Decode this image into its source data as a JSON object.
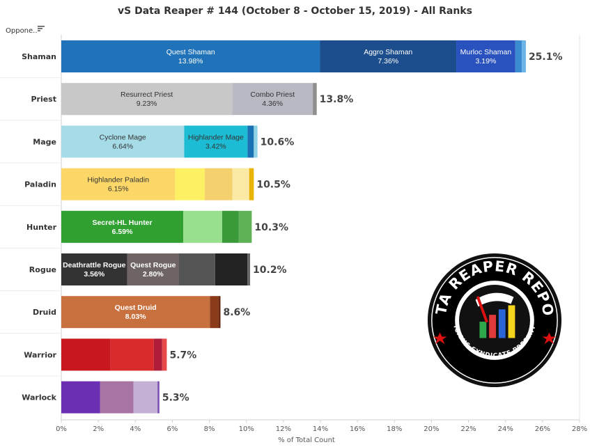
{
  "title": "vS Data Reaper # 144 (October 8 - October 15, 2019) - All Ranks",
  "header_label": "Oppone..",
  "icons": {
    "sort": "sort-descending-icon"
  },
  "badge": {
    "title": "DATA REAPER REPORT",
    "subtitle": "VICIOUS SYNDICATE PRESENTS"
  },
  "chart_data": {
    "type": "bar",
    "orientation": "horizontal",
    "stacked": true,
    "title": "vS Data Reaper # 144 (October 8 - October 15, 2019) - All Ranks",
    "xlabel": "% of Total Count",
    "ylabel": "Oppone..",
    "xlim": [
      0,
      28
    ],
    "xticks": [
      "0%",
      "2%",
      "4%",
      "6%",
      "8%",
      "10%",
      "12%",
      "14%",
      "16%",
      "18%",
      "20%",
      "22%",
      "24%",
      "26%",
      "28%"
    ],
    "grid": false,
    "categories": [
      "Shaman",
      "Priest",
      "Mage",
      "Paladin",
      "Hunter",
      "Rogue",
      "Druid",
      "Warrior",
      "Warlock"
    ],
    "totals": [
      "25.1%",
      "13.8%",
      "10.6%",
      "10.5%",
      "10.3%",
      "10.2%",
      "8.6%",
      "5.7%",
      "5.3%"
    ],
    "total_values": [
      25.1,
      13.8,
      10.6,
      10.5,
      10.3,
      10.2,
      8.6,
      5.7,
      5.3
    ],
    "bars": [
      {
        "class": "Shaman",
        "segments": [
          {
            "name": "Quest Shaman",
            "label": "13.98%",
            "value": 13.98,
            "color": "#2073b8",
            "text_color": "#ffffff"
          },
          {
            "name": "Aggro Shaman",
            "label": "7.36%",
            "value": 7.36,
            "color": "#1c4d8c",
            "text_color": "#ffffff"
          },
          {
            "name": "Murloc Shaman",
            "label": "3.19%",
            "value": 3.19,
            "color": "#2a52be",
            "text_color": "#ffffff"
          },
          {
            "name": "",
            "label": "",
            "value": 0.35,
            "color": "#3a8bd0",
            "text_color": "#ffffff"
          },
          {
            "name": "",
            "label": "",
            "value": 0.22,
            "color": "#6cb3e6",
            "text_color": "#ffffff"
          }
        ]
      },
      {
        "class": "Priest",
        "segments": [
          {
            "name": "Resurrect Priest",
            "label": "9.23%",
            "value": 9.23,
            "color": "#c8c8c8",
            "text_color": "#333333"
          },
          {
            "name": "Combo Priest",
            "label": "4.36%",
            "value": 4.36,
            "color": "#b9b9c4",
            "text_color": "#333333"
          },
          {
            "name": "",
            "label": "",
            "value": 0.21,
            "color": "#8e8e8e",
            "text_color": "#333333"
          }
        ]
      },
      {
        "class": "Mage",
        "segments": [
          {
            "name": "Cyclone Mage",
            "label": "6.64%",
            "value": 6.64,
            "color": "#a6dbe8",
            "text_color": "#333333"
          },
          {
            "name": "Highlander Mage",
            "label": "3.42%",
            "value": 3.42,
            "color": "#1cbcd4",
            "text_color": "#333333"
          },
          {
            "name": "",
            "label": "",
            "value": 0.34,
            "color": "#1a72b5",
            "text_color": "#333333"
          },
          {
            "name": "",
            "label": "",
            "value": 0.2,
            "color": "#8fd3e6",
            "text_color": "#333333"
          }
        ]
      },
      {
        "class": "Paladin",
        "segments": [
          {
            "name": "Highlander Paladin",
            "label": "6.15%",
            "value": 6.15,
            "color": "#fdd868",
            "text_color": "#333333"
          },
          {
            "name": "",
            "label": "",
            "value": 1.6,
            "color": "#fdf063",
            "text_color": "#333333"
          },
          {
            "name": "",
            "label": "",
            "value": 1.5,
            "color": "#f4d06e",
            "text_color": "#333333"
          },
          {
            "name": "",
            "label": "",
            "value": 0.9,
            "color": "#fbeaa6",
            "text_color": "#333333"
          },
          {
            "name": "",
            "label": "",
            "value": 0.25,
            "color": "#e8b400",
            "text_color": "#333333"
          }
        ]
      },
      {
        "class": "Hunter",
        "segments": [
          {
            "name": "Secret-HL Hunter",
            "label": "6.59%",
            "value": 6.59,
            "color": "#30a030",
            "text_color": "#ffffff"
          },
          {
            "name": "",
            "label": "",
            "value": 2.1,
            "color": "#98e08e",
            "text_color": "#ffffff"
          },
          {
            "name": "",
            "label": "",
            "value": 0.9,
            "color": "#3a9a38",
            "text_color": "#ffffff"
          },
          {
            "name": "",
            "label": "",
            "value": 0.7,
            "color": "#5fb257",
            "text_color": "#ffffff"
          }
        ]
      },
      {
        "class": "Rogue",
        "segments": [
          {
            "name": "Deathrattle Rogue",
            "label": "3.56%",
            "value": 3.56,
            "color": "#333333",
            "text_color": "#ffffff"
          },
          {
            "name": "Quest Rogue",
            "label": "2.80%",
            "value": 2.8,
            "color": "#6e6464",
            "text_color": "#ffffff"
          },
          {
            "name": "",
            "label": "",
            "value": 1.95,
            "color": "#555555",
            "text_color": "#ffffff"
          },
          {
            "name": "",
            "label": "",
            "value": 1.75,
            "color": "#232323",
            "text_color": "#ffffff"
          },
          {
            "name": "",
            "label": "",
            "value": 0.14,
            "color": "#666666",
            "text_color": "#ffffff"
          }
        ]
      },
      {
        "class": "Druid",
        "segments": [
          {
            "name": "Quest Druid",
            "label": "8.03%",
            "value": 8.03,
            "color": "#c8703e",
            "text_color": "#ffffff"
          },
          {
            "name": "",
            "label": "",
            "value": 0.45,
            "color": "#8b3a1a",
            "text_color": "#ffffff"
          },
          {
            "name": "",
            "label": "",
            "value": 0.12,
            "color": "#6a2a10",
            "text_color": "#ffffff"
          }
        ]
      },
      {
        "class": "Warrior",
        "segments": [
          {
            "name": "",
            "label": "",
            "value": 2.65,
            "color": "#c8171e",
            "text_color": "#ffffff"
          },
          {
            "name": "",
            "label": "",
            "value": 2.35,
            "color": "#d92b2b",
            "text_color": "#ffffff"
          },
          {
            "name": "",
            "label": "",
            "value": 0.45,
            "color": "#b01d3a",
            "text_color": "#ffffff"
          },
          {
            "name": "",
            "label": "",
            "value": 0.25,
            "color": "#e84a4a",
            "text_color": "#ffffff"
          }
        ]
      },
      {
        "class": "Warlock",
        "segments": [
          {
            "name": "",
            "label": "",
            "value": 2.1,
            "color": "#6b2fb3",
            "text_color": "#ffffff"
          },
          {
            "name": "",
            "label": "",
            "value": 1.8,
            "color": "#a874a3",
            "text_color": "#ffffff"
          },
          {
            "name": "",
            "label": "",
            "value": 1.3,
            "color": "#c4b0d4",
            "text_color": "#ffffff"
          },
          {
            "name": "",
            "label": "",
            "value": 0.1,
            "color": "#7b4fb3",
            "text_color": "#ffffff"
          }
        ]
      }
    ]
  }
}
